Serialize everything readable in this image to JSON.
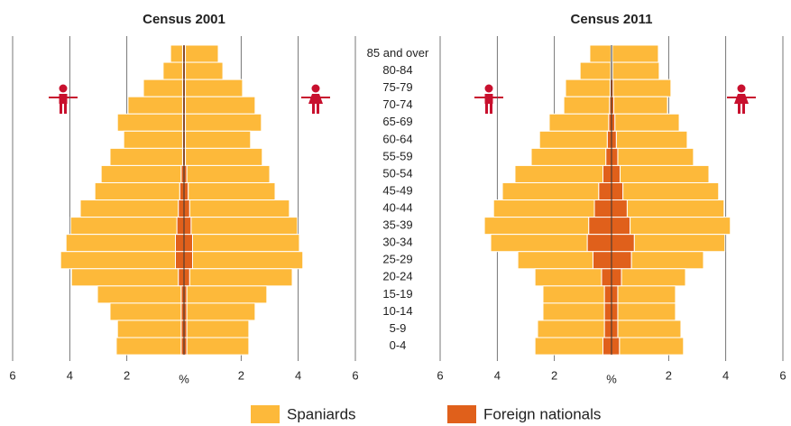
{
  "chart_data": {
    "type": "pyramid",
    "categories": [
      "85 and over",
      "80-84",
      "75-79",
      "70-74",
      "65-69",
      "60-64",
      "55-59",
      "50-54",
      "45-49",
      "40-44",
      "35-39",
      "30-34",
      "25-29",
      "20-24",
      "15-19",
      "10-14",
      "5-9",
      "0-4"
    ],
    "xlim": [
      0,
      6
    ],
    "xticks": [
      {
        "value": 0,
        "label": "%"
      },
      2,
      4,
      6
    ],
    "grid": true,
    "series": [
      {
        "name": "Spaniards",
        "color": "#fdb93a"
      },
      {
        "name": "Foreign nationals",
        "color": "#e0601b"
      }
    ],
    "panels": [
      {
        "title": "Census 2001",
        "male": [
          [
            0.42,
            0.68,
            1.37,
            1.91,
            2.28,
            2.06,
            2.54,
            2.8,
            2.97,
            3.43,
            3.72,
            3.83,
            4.02,
            3.74,
            2.93,
            2.49,
            2.23,
            2.27
          ],
          [
            0.05,
            0.05,
            0.05,
            0.05,
            0.05,
            0.05,
            0.05,
            0.1,
            0.15,
            0.2,
            0.25,
            0.3,
            0.3,
            0.2,
            0.1,
            0.1,
            0.1,
            0.1
          ]
        ],
        "female": [
          [
            1.15,
            1.31,
            2.0,
            2.44,
            2.66,
            2.28,
            2.69,
            2.9,
            3.04,
            3.49,
            3.72,
            3.74,
            3.86,
            3.59,
            2.8,
            2.39,
            2.17,
            2.17
          ],
          [
            0.05,
            0.05,
            0.05,
            0.05,
            0.05,
            0.05,
            0.05,
            0.1,
            0.15,
            0.2,
            0.25,
            0.3,
            0.3,
            0.2,
            0.1,
            0.1,
            0.1,
            0.1
          ]
        ]
      },
      {
        "title": "Census 2011",
        "male": [
          [
            0.74,
            1.07,
            1.56,
            1.6,
            2.08,
            2.37,
            2.61,
            3.08,
            3.37,
            3.53,
            3.65,
            3.38,
            2.63,
            2.33,
            2.15,
            2.15,
            2.34,
            2.38
          ],
          [
            0.02,
            0.03,
            0.05,
            0.07,
            0.1,
            0.15,
            0.2,
            0.3,
            0.45,
            0.6,
            0.8,
            0.85,
            0.65,
            0.35,
            0.25,
            0.25,
            0.25,
            0.3
          ]
        ],
        "female": [
          [
            1.61,
            1.63,
            2.02,
            1.88,
            2.25,
            2.48,
            2.65,
            3.11,
            3.35,
            3.39,
            3.51,
            3.17,
            2.52,
            2.24,
            2.02,
            2.02,
            2.21,
            2.24
          ],
          [
            0.03,
            0.04,
            0.06,
            0.08,
            0.12,
            0.17,
            0.22,
            0.3,
            0.4,
            0.55,
            0.65,
            0.8,
            0.7,
            0.35,
            0.22,
            0.22,
            0.22,
            0.28
          ]
        ]
      }
    ]
  }
}
